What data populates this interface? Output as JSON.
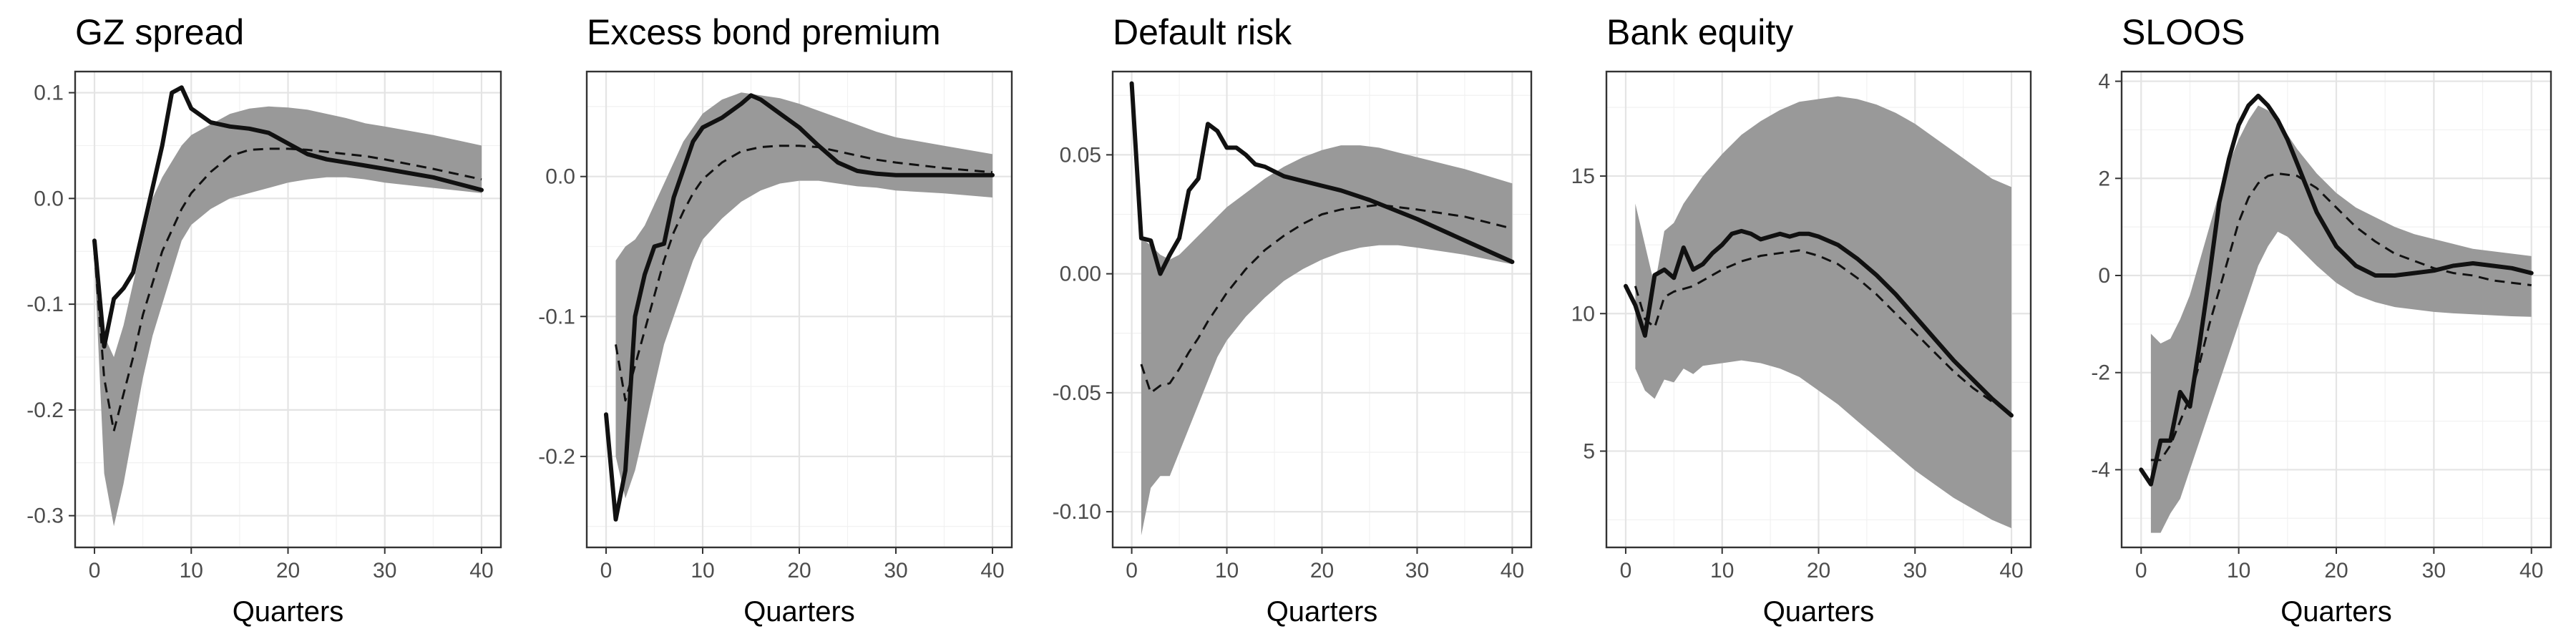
{
  "chart_data": [
    {
      "type": "line",
      "title": "GZ spread",
      "xlabel": "Quarters",
      "ylabel": "",
      "xlim": [
        -2,
        42
      ],
      "ylim": [
        -0.33,
        0.12
      ],
      "xticks": [
        0,
        10,
        20,
        30,
        40
      ],
      "yticks": [
        -0.3,
        -0.2,
        -0.1,
        0.0,
        0.1
      ],
      "ytick_labels": [
        "-0.3",
        "-0.2",
        "-0.1",
        "0.0",
        "0.1"
      ],
      "grid": true,
      "band": {
        "x": [
          0,
          1,
          2,
          3,
          4,
          5,
          6,
          7,
          8,
          9,
          10,
          12,
          14,
          16,
          18,
          20,
          22,
          24,
          26,
          28,
          30,
          35,
          40
        ],
        "lower": [
          -0.06,
          -0.26,
          -0.31,
          -0.27,
          -0.22,
          -0.17,
          -0.13,
          -0.1,
          -0.07,
          -0.04,
          -0.025,
          -0.01,
          0.0,
          0.005,
          0.01,
          0.015,
          0.018,
          0.02,
          0.02,
          0.018,
          0.015,
          0.01,
          0.005
        ],
        "upper": [
          -0.04,
          -0.13,
          -0.15,
          -0.12,
          -0.08,
          -0.04,
          0.0,
          0.02,
          0.035,
          0.05,
          0.06,
          0.07,
          0.08,
          0.085,
          0.087,
          0.086,
          0.084,
          0.08,
          0.076,
          0.071,
          0.068,
          0.06,
          0.05
        ]
      },
      "series": [
        {
          "style": "solid",
          "x": [
            0,
            1,
            2,
            3,
            4,
            5,
            6,
            7,
            8,
            9,
            10,
            12,
            14,
            16,
            18,
            20,
            22,
            24,
            26,
            28,
            30,
            35,
            40
          ],
          "values": [
            -0.04,
            -0.14,
            -0.095,
            -0.085,
            -0.07,
            -0.03,
            0.01,
            0.05,
            0.1,
            0.105,
            0.085,
            0.072,
            0.068,
            0.066,
            0.062,
            0.052,
            0.042,
            0.037,
            0.034,
            0.031,
            0.028,
            0.02,
            0.008
          ]
        },
        {
          "style": "dashed",
          "x": [
            0,
            1,
            2,
            3,
            4,
            5,
            6,
            7,
            8,
            9,
            10,
            12,
            14,
            16,
            18,
            20,
            22,
            24,
            26,
            28,
            30,
            35,
            40
          ],
          "values": [
            -0.05,
            -0.17,
            -0.22,
            -0.185,
            -0.15,
            -0.11,
            -0.08,
            -0.05,
            -0.03,
            -0.01,
            0.005,
            0.025,
            0.04,
            0.046,
            0.047,
            0.047,
            0.046,
            0.044,
            0.042,
            0.04,
            0.037,
            0.028,
            0.018
          ]
        }
      ]
    },
    {
      "type": "line",
      "title": "Excess bond premium",
      "xlabel": "Quarters",
      "ylabel": "",
      "xlim": [
        -2,
        42
      ],
      "ylim": [
        -0.265,
        0.075
      ],
      "xticks": [
        0,
        10,
        20,
        30,
        40
      ],
      "yticks": [
        -0.2,
        -0.1,
        0.0
      ],
      "ytick_labels": [
        "-0.2",
        "-0.1",
        "0.0"
      ],
      "grid": true,
      "band": {
        "x": [
          1,
          2,
          3,
          4,
          5,
          6,
          7,
          8,
          9,
          10,
          12,
          14,
          16,
          18,
          20,
          22,
          24,
          26,
          28,
          30,
          35,
          40
        ],
        "lower": [
          -0.2,
          -0.23,
          -0.21,
          -0.18,
          -0.15,
          -0.12,
          -0.1,
          -0.08,
          -0.06,
          -0.045,
          -0.03,
          -0.018,
          -0.01,
          -0.005,
          -0.003,
          -0.003,
          -0.005,
          -0.007,
          -0.008,
          -0.01,
          -0.012,
          -0.015
        ],
        "upper": [
          -0.06,
          -0.05,
          -0.045,
          -0.035,
          -0.02,
          -0.005,
          0.01,
          0.025,
          0.035,
          0.045,
          0.055,
          0.06,
          0.058,
          0.056,
          0.052,
          0.047,
          0.042,
          0.037,
          0.032,
          0.028,
          0.022,
          0.016
        ]
      },
      "series": [
        {
          "style": "solid",
          "x": [
            0,
            1,
            2,
            3,
            4,
            5,
            6,
            7,
            8,
            9,
            10,
            12,
            14,
            15,
            16,
            18,
            20,
            22,
            24,
            26,
            28,
            30,
            35,
            40
          ],
          "values": [
            -0.17,
            -0.245,
            -0.21,
            -0.1,
            -0.07,
            -0.05,
            -0.048,
            -0.015,
            0.005,
            0.025,
            0.035,
            0.042,
            0.052,
            0.058,
            0.055,
            0.045,
            0.035,
            0.022,
            0.01,
            0.004,
            0.002,
            0.001,
            0.001,
            0.001
          ]
        },
        {
          "style": "dashed",
          "x": [
            1,
            2,
            3,
            4,
            5,
            6,
            7,
            8,
            9,
            10,
            12,
            14,
            16,
            18,
            20,
            22,
            24,
            26,
            28,
            30,
            35,
            40
          ],
          "values": [
            -0.12,
            -0.16,
            -0.135,
            -0.11,
            -0.085,
            -0.06,
            -0.04,
            -0.025,
            -0.012,
            -0.002,
            0.01,
            0.018,
            0.021,
            0.022,
            0.022,
            0.021,
            0.018,
            0.015,
            0.012,
            0.01,
            0.006,
            0.003
          ]
        }
      ]
    },
    {
      "type": "line",
      "title": "Default risk",
      "xlabel": "Quarters",
      "ylabel": "",
      "xlim": [
        -2,
        42
      ],
      "ylim": [
        -0.115,
        0.085
      ],
      "xticks": [
        0,
        10,
        20,
        30,
        40
      ],
      "yticks": [
        -0.1,
        -0.05,
        0.0,
        0.05
      ],
      "ytick_labels": [
        "-0.10",
        "-0.05",
        "0.00",
        "0.05"
      ],
      "grid": true,
      "band": {
        "x": [
          1,
          2,
          3,
          4,
          5,
          6,
          7,
          8,
          9,
          10,
          12,
          14,
          16,
          18,
          20,
          22,
          24,
          26,
          28,
          30,
          35,
          40
        ],
        "lower": [
          -0.11,
          -0.09,
          -0.085,
          -0.085,
          -0.075,
          -0.065,
          -0.055,
          -0.045,
          -0.035,
          -0.028,
          -0.018,
          -0.01,
          -0.003,
          0.002,
          0.006,
          0.009,
          0.011,
          0.012,
          0.012,
          0.011,
          0.008,
          0.004
        ],
        "upper": [
          0.015,
          0.012,
          0.008,
          0.006,
          0.008,
          0.012,
          0.016,
          0.02,
          0.024,
          0.028,
          0.034,
          0.04,
          0.045,
          0.049,
          0.052,
          0.054,
          0.054,
          0.053,
          0.051,
          0.049,
          0.044,
          0.038
        ]
      },
      "series": [
        {
          "style": "solid",
          "x": [
            0,
            1,
            2,
            3,
            4,
            5,
            6,
            7,
            8,
            9,
            10,
            11,
            12,
            13,
            14,
            15,
            16,
            18,
            20,
            22,
            25,
            30,
            35,
            40
          ],
          "values": [
            0.08,
            0.015,
            0.014,
            0.0,
            0.008,
            0.015,
            0.035,
            0.04,
            0.063,
            0.06,
            0.053,
            0.053,
            0.05,
            0.046,
            0.045,
            0.043,
            0.041,
            0.039,
            0.037,
            0.035,
            0.031,
            0.023,
            0.014,
            0.005
          ]
        },
        {
          "style": "dashed",
          "x": [
            1,
            2,
            3,
            4,
            5,
            6,
            7,
            8,
            9,
            10,
            12,
            14,
            16,
            18,
            20,
            22,
            24,
            26,
            28,
            30,
            35,
            40
          ],
          "values": [
            -0.038,
            -0.05,
            -0.047,
            -0.046,
            -0.04,
            -0.033,
            -0.027,
            -0.02,
            -0.014,
            -0.008,
            0.002,
            0.01,
            0.016,
            0.021,
            0.025,
            0.027,
            0.028,
            0.029,
            0.028,
            0.027,
            0.024,
            0.019
          ]
        }
      ]
    },
    {
      "type": "line",
      "title": "Bank equity",
      "xlabel": "Quarters",
      "ylabel": "",
      "xlim": [
        -2,
        42
      ],
      "ylim": [
        1.5,
        18.8
      ],
      "xticks": [
        0,
        10,
        20,
        30,
        40
      ],
      "yticks": [
        5,
        10,
        15
      ],
      "ytick_labels": [
        "5",
        "10",
        "15"
      ],
      "grid": true,
      "band": {
        "x": [
          1,
          2,
          3,
          4,
          5,
          6,
          7,
          8,
          10,
          12,
          14,
          16,
          18,
          20,
          22,
          24,
          26,
          28,
          30,
          32,
          34,
          36,
          38,
          40
        ],
        "lower": [
          8.0,
          7.2,
          6.9,
          7.6,
          7.5,
          8.0,
          7.8,
          8.1,
          8.2,
          8.3,
          8.2,
          8.0,
          7.7,
          7.2,
          6.7,
          6.1,
          5.5,
          4.9,
          4.3,
          3.8,
          3.3,
          2.9,
          2.5,
          2.2
        ],
        "upper": [
          14.0,
          12.5,
          11.0,
          13.0,
          13.3,
          14.0,
          14.5,
          15.0,
          15.8,
          16.5,
          17.0,
          17.4,
          17.7,
          17.8,
          17.9,
          17.8,
          17.6,
          17.3,
          16.9,
          16.4,
          15.9,
          15.4,
          14.9,
          14.6
        ]
      },
      "series": [
        {
          "style": "solid",
          "x": [
            0,
            1,
            2,
            3,
            4,
            5,
            6,
            7,
            8,
            9,
            10,
            11,
            12,
            13,
            14,
            15,
            16,
            17,
            18,
            19,
            20,
            22,
            24,
            26,
            28,
            30,
            32,
            34,
            36,
            38,
            40
          ],
          "values": [
            11.0,
            10.3,
            9.2,
            11.4,
            11.6,
            11.3,
            12.4,
            11.6,
            11.8,
            12.2,
            12.5,
            12.9,
            13.0,
            12.9,
            12.7,
            12.8,
            12.9,
            12.8,
            12.9,
            12.9,
            12.8,
            12.5,
            12.0,
            11.4,
            10.7,
            9.9,
            9.1,
            8.3,
            7.6,
            6.9,
            6.3
          ]
        },
        {
          "style": "dashed",
          "x": [
            1,
            2,
            3,
            4,
            5,
            6,
            7,
            8,
            10,
            12,
            14,
            16,
            18,
            20,
            22,
            24,
            26,
            28,
            30,
            32,
            34,
            36,
            38,
            40
          ],
          "values": [
            11.0,
            9.8,
            9.5,
            10.6,
            10.8,
            10.9,
            11.0,
            11.2,
            11.6,
            11.9,
            12.1,
            12.2,
            12.3,
            12.1,
            11.8,
            11.3,
            10.7,
            10.0,
            9.3,
            8.6,
            7.9,
            7.3,
            6.8,
            6.4
          ]
        }
      ]
    },
    {
      "type": "line",
      "title": "SLOOS",
      "xlabel": "Quarters",
      "ylabel": "",
      "xlim": [
        -2,
        42
      ],
      "ylim": [
        -5.6,
        4.2
      ],
      "xticks": [
        0,
        10,
        20,
        30,
        40
      ],
      "yticks": [
        -4,
        -2,
        0,
        2,
        4
      ],
      "ytick_labels": [
        "-4",
        "-2",
        "0",
        "2",
        "4"
      ],
      "grid": true,
      "band": {
        "x": [
          1,
          2,
          3,
          4,
          5,
          6,
          7,
          8,
          9,
          10,
          11,
          12,
          13,
          14,
          15,
          16,
          18,
          20,
          22,
          24,
          26,
          28,
          30,
          32,
          34,
          36,
          38,
          40
        ],
        "lower": [
          -5.3,
          -5.3,
          -4.9,
          -4.6,
          -4.0,
          -3.4,
          -2.8,
          -2.2,
          -1.6,
          -1.0,
          -0.4,
          0.2,
          0.6,
          0.9,
          0.8,
          0.6,
          0.2,
          -0.15,
          -0.4,
          -0.55,
          -0.65,
          -0.7,
          -0.75,
          -0.78,
          -0.8,
          -0.82,
          -0.84,
          -0.85
        ],
        "upper": [
          -1.2,
          -1.4,
          -1.3,
          -0.9,
          -0.4,
          0.3,
          1.0,
          1.7,
          2.3,
          2.8,
          3.2,
          3.5,
          3.4,
          3.2,
          2.9,
          2.6,
          2.1,
          1.7,
          1.4,
          1.2,
          1.0,
          0.85,
          0.75,
          0.65,
          0.55,
          0.5,
          0.45,
          0.4
        ]
      },
      "series": [
        {
          "style": "solid",
          "x": [
            0,
            1,
            2,
            3,
            4,
            5,
            6,
            7,
            8,
            9,
            10,
            11,
            12,
            13,
            14,
            15,
            16,
            18,
            20,
            22,
            24,
            26,
            28,
            30,
            32,
            34,
            36,
            38,
            40
          ],
          "values": [
            -4.0,
            -4.3,
            -3.4,
            -3.4,
            -2.4,
            -2.7,
            -1.4,
            0.0,
            1.5,
            2.4,
            3.1,
            3.5,
            3.7,
            3.5,
            3.2,
            2.8,
            2.3,
            1.3,
            0.6,
            0.2,
            0.0,
            0.0,
            0.05,
            0.1,
            0.2,
            0.25,
            0.2,
            0.15,
            0.05
          ]
        },
        {
          "style": "dashed",
          "x": [
            1,
            2,
            3,
            4,
            5,
            6,
            7,
            8,
            9,
            10,
            11,
            12,
            13,
            14,
            16,
            18,
            20,
            22,
            24,
            26,
            28,
            30,
            32,
            34,
            36,
            38,
            40
          ],
          "values": [
            -3.8,
            -3.8,
            -3.5,
            -3.0,
            -2.5,
            -1.8,
            -1.0,
            -0.3,
            0.4,
            1.1,
            1.6,
            1.9,
            2.05,
            2.1,
            2.05,
            1.8,
            1.4,
            1.0,
            0.7,
            0.45,
            0.3,
            0.15,
            0.05,
            0.0,
            -0.1,
            -0.15,
            -0.2
          ]
        }
      ]
    }
  ]
}
